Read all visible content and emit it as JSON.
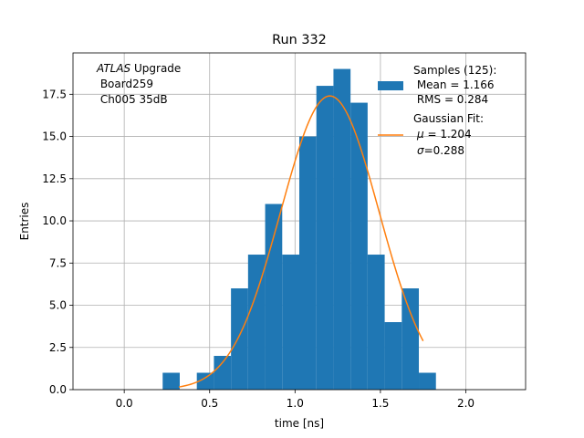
{
  "chart_data": {
    "type": "bar",
    "title": "Run 332",
    "xlabel": "time [ns]",
    "ylabel": "Entries",
    "xlim": [
      -0.3,
      2.35
    ],
    "ylim": [
      0,
      19.95
    ],
    "xticks": [
      0.0,
      0.5,
      1.0,
      1.5,
      2.0
    ],
    "xtick_labels": [
      "0.0",
      "0.5",
      "1.0",
      "1.5",
      "2.0"
    ],
    "yticks": [
      0.0,
      2.5,
      5.0,
      7.5,
      10.0,
      12.5,
      15.0,
      17.5
    ],
    "ytick_labels": [
      "0.0",
      "2.5",
      "5.0",
      "7.5",
      "10.0",
      "12.5",
      "15.0",
      "17.5"
    ],
    "grid": true,
    "bin_edges": [
      0.225,
      0.325,
      0.425,
      0.525,
      0.625,
      0.725,
      0.825,
      0.925,
      1.025,
      1.125,
      1.225,
      1.325,
      1.425,
      1.525,
      1.625,
      1.725,
      1.825
    ],
    "histogram_counts": [
      1,
      0,
      1,
      2,
      6,
      8,
      11,
      8,
      15,
      18,
      19,
      17,
      8,
      4,
      6,
      1
    ],
    "fit": {
      "mu": 1.204,
      "sigma": 0.288,
      "amplitude": 17.4,
      "x_range": [
        0.32,
        1.75
      ]
    },
    "annotation": {
      "line1_italic": "ATLAS",
      "line1_rest": " Upgrade",
      "line2": " Board259",
      "line3": " Ch005 35dB"
    },
    "legend": {
      "position": "upper right",
      "hist": {
        "line1": "Samples (125):",
        "line2": " Mean = 1.166",
        "line3": " RMS = 0.284"
      },
      "fit": {
        "line1": "Gaussian Fit:",
        "line2_sym": "μ",
        "line2_rest": " = 1.204",
        "line3_sym": "σ",
        "line3_rest": "=0.288"
      }
    },
    "colors": {
      "bars": "#1f77b4",
      "fit": "#ff7f0e",
      "grid": "#b0b0b0"
    }
  }
}
